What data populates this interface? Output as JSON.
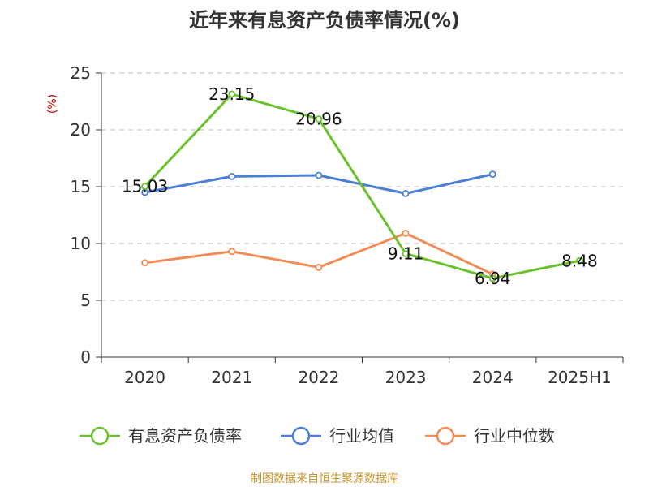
{
  "chart_data": {
    "type": "line",
    "title": "近年来有息资产负债率情况(%)",
    "ylabel": "(%)",
    "categories": [
      "2020",
      "2021",
      "2022",
      "2023",
      "2024",
      "2025H1"
    ],
    "ylim": [
      0,
      25
    ],
    "yticks": [
      "0",
      "5",
      "10",
      "15",
      "20",
      "25"
    ],
    "grid": true,
    "legend_position": "bottom",
    "series": [
      {
        "name": "有息资产负债率",
        "color": "#6bc22e",
        "values": [
          15.03,
          23.15,
          20.96,
          9.11,
          6.94,
          8.48
        ],
        "labels": [
          "15.03",
          "23.15",
          "20.96",
          "9.11",
          "6.94",
          "8.48"
        ]
      },
      {
        "name": "行业均值",
        "color": "#4c7fd4",
        "values": [
          14.5,
          15.9,
          16.0,
          14.4,
          16.1,
          null
        ]
      },
      {
        "name": "行业中位数",
        "color": "#f28b55",
        "values": [
          8.3,
          9.3,
          7.9,
          10.9,
          7.3,
          null
        ]
      }
    ]
  },
  "colors": {
    "ylabel": "#cc0000",
    "source": "#c9962e",
    "axis": "#333333",
    "grid": "#bbbbbb"
  },
  "source_text": "制图数据来自恒生聚源数据库"
}
